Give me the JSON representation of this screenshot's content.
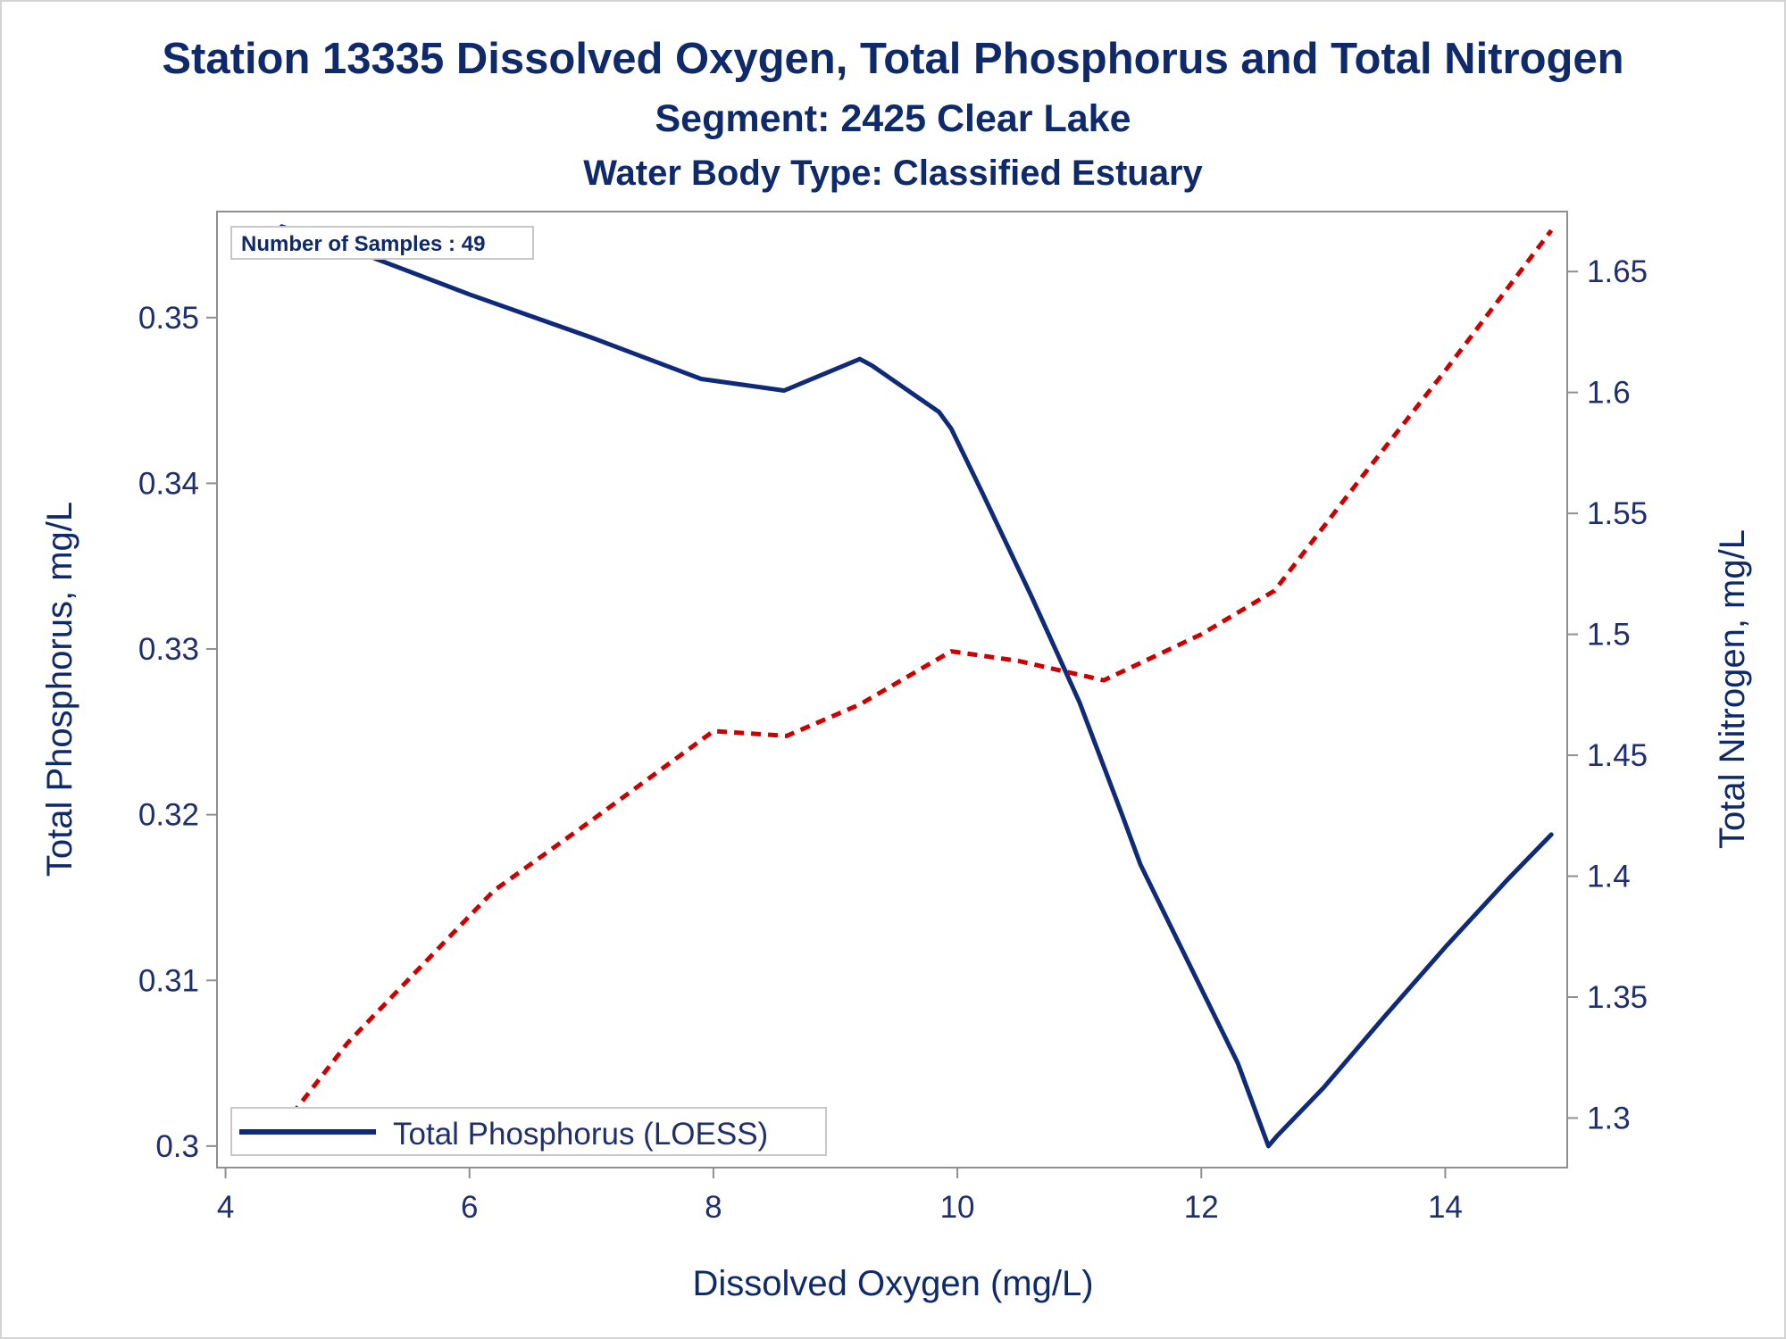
{
  "chart_data": {
    "type": "line",
    "title": "Station 13335  Dissolved Oxygen, Total Phosphorus and Total Nitrogen",
    "subtitle": "Segment: 2425  Clear Lake",
    "subtitle2": "Water Body Type: Classified Estuary",
    "xlabel": "Dissolved Oxygen (mg/L)",
    "ylabel": "Total Phosphorus, mg/L",
    "y2label": "Total Nitrogen, mg/L",
    "xlim": [
      3.93,
      15.0
    ],
    "ylim": [
      0.2987,
      0.3564
    ],
    "y2lim": [
      1.2795,
      1.6748
    ],
    "x_ticks": [
      4,
      6,
      8,
      10,
      12,
      14
    ],
    "y_ticks": [
      0.3,
      0.31,
      0.32,
      0.33,
      0.34,
      0.35
    ],
    "y_tick_labels": [
      "0.3",
      "0.31",
      "0.32",
      "0.33",
      "0.34",
      "0.35"
    ],
    "y2_ticks": [
      1.3,
      1.35,
      1.4,
      1.45,
      1.5,
      1.55,
      1.6,
      1.65
    ],
    "y2_tick_labels": [
      "1.3",
      "1.35",
      "1.4",
      "1.45",
      "1.5",
      "1.55",
      "1.6",
      "1.65"
    ],
    "annotation": "Number of Samples : 49",
    "legend_position": "bottom-left",
    "grid": false,
    "series": [
      {
        "name": "Total Phosphorus (LOESS)",
        "axis": "left",
        "color": "#0f2a78",
        "style": "solid",
        "x": [
          4.46,
          5.0,
          6.0,
          7.0,
          7.9,
          8.58,
          9.2,
          9.3,
          9.85,
          9.95,
          10.2,
          10.6,
          11.0,
          11.35,
          11.5,
          11.8,
          12.3,
          12.55,
          12.62,
          13.0,
          13.5,
          14.0,
          14.5,
          14.87
        ],
        "y": [
          0.3555,
          0.3542,
          0.3514,
          0.3488,
          0.3463,
          0.3456,
          0.3475,
          0.3471,
          0.3443,
          0.3433,
          0.3395,
          0.3333,
          0.3268,
          0.32,
          0.317,
          0.3125,
          0.305,
          0.3,
          0.3006,
          0.3035,
          0.3078,
          0.312,
          0.316,
          0.3188
        ]
      },
      {
        "name": "",
        "axis": "right",
        "color": "#cc0000",
        "style": "dashed",
        "x": [
          4.46,
          5.0,
          6.2,
          7.0,
          8.0,
          8.6,
          9.2,
          9.95,
          10.5,
          11.2,
          12.0,
          12.6,
          13.3,
          14.0,
          14.87
        ],
        "y": [
          1.296,
          1.331,
          1.394,
          1.423,
          1.46,
          1.458,
          1.471,
          1.493,
          1.489,
          1.481,
          1.5,
          1.518,
          1.564,
          1.609,
          1.667
        ]
      }
    ]
  }
}
